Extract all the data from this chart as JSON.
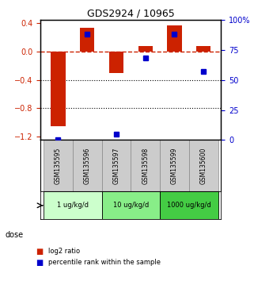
{
  "title": "GDS2924 / 10965",
  "samples": [
    "GSM135595",
    "GSM135596",
    "GSM135597",
    "GSM135598",
    "GSM135599",
    "GSM135600"
  ],
  "log2_ratio": [
    -1.05,
    0.33,
    -0.3,
    0.08,
    0.37,
    0.08
  ],
  "percentile_rank": [
    0.5,
    88,
    5,
    68,
    88,
    57
  ],
  "ylim_left": [
    -1.25,
    0.45
  ],
  "ylim_right": [
    0,
    100
  ],
  "yticks_left": [
    -1.2,
    -0.8,
    -0.4,
    0.0,
    0.4
  ],
  "yticks_right": [
    0,
    25,
    50,
    75,
    100
  ],
  "ytick_labels_right": [
    "0",
    "25",
    "50",
    "75",
    "100%"
  ],
  "bar_color": "#cc2200",
  "dot_color": "#0000cc",
  "hline_color": "#cc2200",
  "grid_color": "#000000",
  "dose_groups": [
    {
      "label": "1 ug/kg/d",
      "indices": [
        0,
        1
      ],
      "color": "#ccffcc"
    },
    {
      "label": "10 ug/kg/d",
      "indices": [
        2,
        3
      ],
      "color": "#88ee88"
    },
    {
      "label": "1000 ug/kg/d",
      "indices": [
        4,
        5
      ],
      "color": "#44cc44"
    }
  ],
  "dose_label": "dose",
  "legend_red": "log2 ratio",
  "legend_blue": "percentile rank within the sample",
  "bar_width": 0.5,
  "sample_box_color": "#cccccc",
  "sample_box_edgecolor": "#888888"
}
